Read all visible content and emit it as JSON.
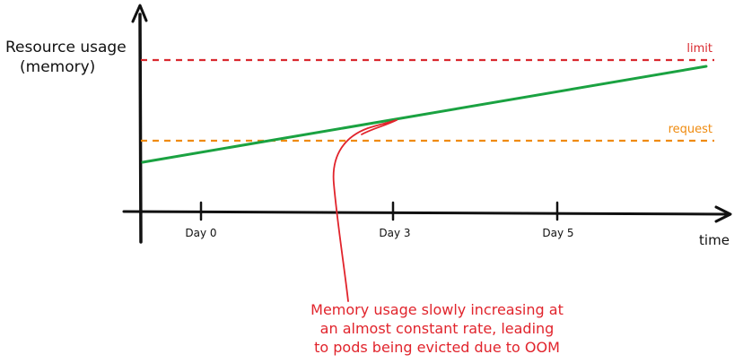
{
  "diagram": {
    "y_axis_label_line1": "Resource usage",
    "y_axis_label_line2": "(memory)",
    "x_axis_label": "time",
    "ticks": [
      "Day 0",
      "Day 3",
      "Day 5"
    ],
    "limit_label": "limit",
    "request_label": "request",
    "annotation_lines": [
      "Memory usage slowly increasing at",
      "an almost constant rate, leading",
      "to pods being evicted due to OOM"
    ]
  },
  "colors": {
    "axis": "#111111",
    "limit": "#d9292f",
    "request": "#ef8b10",
    "usage": "#1aa241",
    "annotation": "#e1242c"
  }
}
